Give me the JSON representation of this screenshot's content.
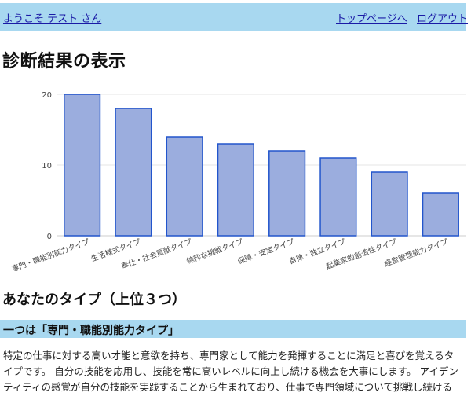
{
  "header": {
    "welcome": "ようこそ テスト さん",
    "nav_top": "トップページへ",
    "nav_logout": "ログアウト"
  },
  "page_title": "診断結果の表示",
  "chart_data": {
    "type": "bar",
    "categories": [
      "専門・職能別能力タイプ",
      "生活様式タイプ",
      "奉仕・社会貢献タイプ",
      "純粋な挑戦タイプ",
      "保障・安定タイプ",
      "自律・独立タイプ",
      "起業家的創造性タイプ",
      "経営管理能力タイプ"
    ],
    "values": [
      20,
      18,
      14,
      13,
      12,
      11,
      9,
      6
    ],
    "ylim": [
      0,
      20
    ],
    "yticks": [
      "0",
      "10",
      "20"
    ],
    "grid": true,
    "bar_color": "#9badde",
    "bar_stroke": "#2255cc"
  },
  "section": {
    "title": "あなたのタイプ（上位３つ）",
    "first_label": "一つは「専門・職能別能力タイプ」",
    "description": "特定の仕事に対する高い才能と意欲を持ち、専門家として能力を発揮することに満足と喜びを覚えるタイプです。 自分の技能を応用し、技能を常に高いレベルに向上し続ける機会を大事にします。 アイデンティティの感覚が自分の技能を実践することから生まれており、仕事で専門領域について挑戦し続ける"
  }
}
